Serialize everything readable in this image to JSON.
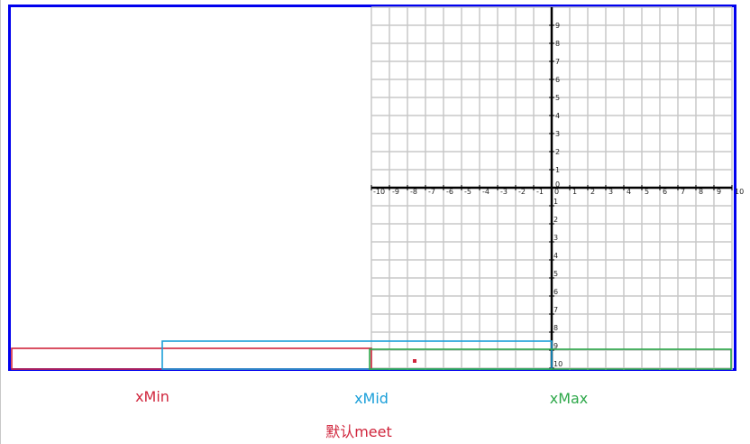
{
  "labels": {
    "xmin": "xMin",
    "xmid": "xMid",
    "xmax": "xMax",
    "default_meet": "默认meet"
  },
  "axes": {
    "x_ticks": [
      "-10",
      "-9",
      "-8",
      "-7",
      "-6",
      "-5",
      "-4",
      "-3",
      "-2",
      "-1",
      "0",
      "1",
      "2",
      "3",
      "4",
      "5",
      "6",
      "7",
      "8",
      "9",
      "10"
    ],
    "y_ticks_positive": [
      "9",
      "8",
      "7",
      "6",
      "5",
      "4",
      "3",
      "2",
      "1"
    ],
    "y_ticks_negative": [
      "1",
      "2",
      "3",
      "4",
      "5",
      "6",
      "7",
      "8",
      "9",
      "10"
    ]
  },
  "colors": {
    "frame": "#0000ee",
    "xmin": "#d0253c",
    "xmid": "#1a9fd9",
    "xmax": "#2ea84a",
    "grid": "#c8c8c8",
    "axis": "#000000",
    "marker": "#d0253c"
  }
}
